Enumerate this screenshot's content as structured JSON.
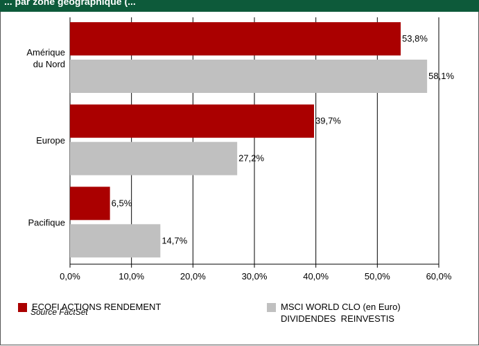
{
  "header": {
    "title": "... par zone géographique (..."
  },
  "legend": [
    {
      "label": "ECOFI ACTIONS RENDEMENT",
      "color": "#aa0000"
    },
    {
      "label": "MSCI WORLD CLO (en Euro)\nDIVIDENDES  REINVESTIS",
      "color": "#c0c0c0"
    }
  ],
  "source": "Source FactSet",
  "chart_data": {
    "type": "bar",
    "orientation": "horizontal",
    "categories": [
      "Amérique\ndu Nord",
      "Europe",
      "Pacifique"
    ],
    "series": [
      {
        "name": "ECOFI ACTIONS RENDEMENT",
        "color": "#aa0000",
        "values": [
          53.8,
          39.7,
          6.5
        ],
        "labels": [
          "53,8%",
          "39,7%",
          "6,5%"
        ]
      },
      {
        "name": "MSCI WORLD CLO (en Euro) DIVIDENDES  REINVESTIS",
        "color": "#c0c0c0",
        "values": [
          58.1,
          27.2,
          14.7
        ],
        "labels": [
          "58,1%",
          "27,2%",
          "14,7%"
        ]
      }
    ],
    "xlim": [
      0,
      60
    ],
    "xticks": [
      0,
      10,
      20,
      30,
      40,
      50,
      60
    ],
    "xtick_labels": [
      "0,0%",
      "10,0%",
      "20,0%",
      "30,0%",
      "40,0%",
      "50,0%",
      "60,0%"
    ],
    "grid": true,
    "legend_position": "bottom"
  }
}
